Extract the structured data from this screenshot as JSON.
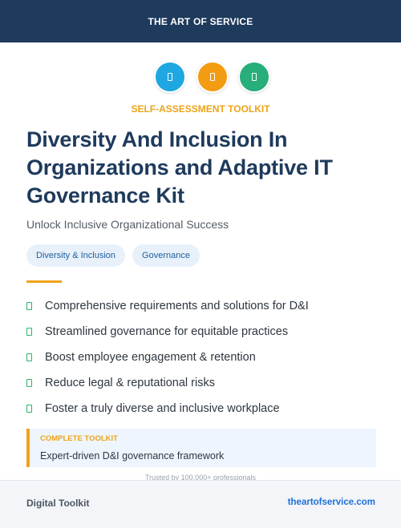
{
  "header": {
    "brand": "THE ART OF SERVICE"
  },
  "icons": [
    {
      "name": "document-icon",
      "color": "#1ea7e1"
    },
    {
      "name": "document-icon",
      "color": "#f39c12"
    },
    {
      "name": "document-icon",
      "color": "#27ae7a"
    }
  ],
  "hero": {
    "kicker": "SELF-ASSESSMENT TOOLKIT",
    "title": "Diversity And Inclusion In Organizations and Adaptive IT Governance Kit",
    "subtitle": "Unlock Inclusive Organizational Success"
  },
  "tags": [
    "Diversity & Inclusion",
    "Governance"
  ],
  "features": [
    "Comprehensive requirements and solutions for D&I",
    "Streamlined governance for equitable practices",
    "Boost employee engagement & retention",
    "Reduce legal & reputational risks",
    "Foster a truly diverse and inclusive workplace"
  ],
  "callout": {
    "label": "COMPLETE TOOLKIT",
    "text": "Expert-driven D&I governance framework"
  },
  "trust": "Trusted by 100,000+ professionals",
  "footer": {
    "left": "Digital Toolkit",
    "right": "theartofservice.com"
  },
  "colors": {
    "navy": "#1e3a5c",
    "accent": "#eea318",
    "check": "#2db36b",
    "link": "#1e6fd9"
  }
}
